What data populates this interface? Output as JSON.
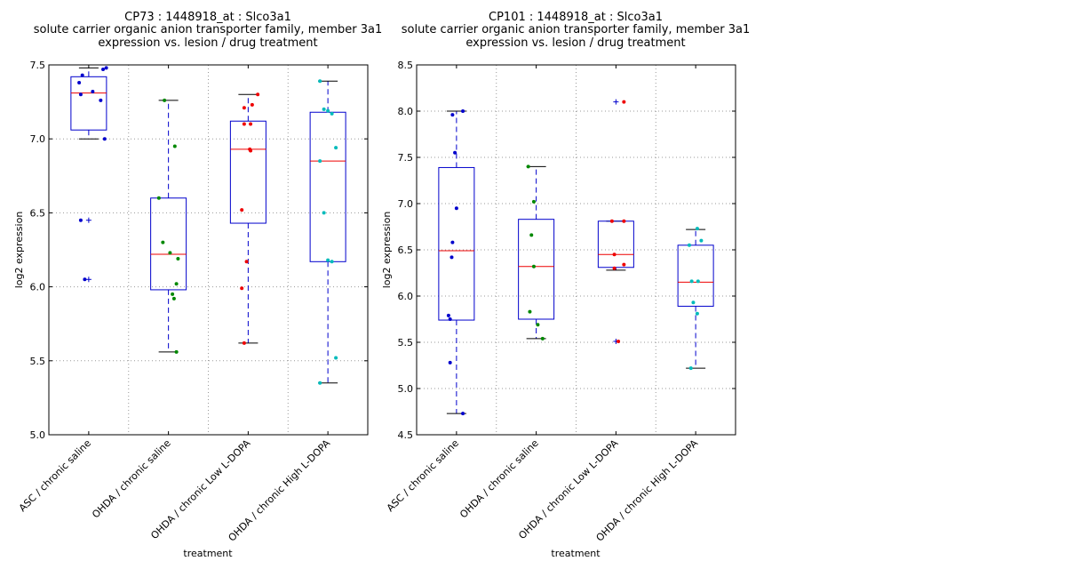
{
  "chart_data": [
    {
      "type": "box",
      "title_lines": [
        "CP73 : 1448918_at : Slco3a1",
        "solute carrier organic anion transporter family, member 3a1",
        "expression vs. lesion / drug treatment"
      ],
      "xlabel": "treatment",
      "ylabel": "log2 expression",
      "ylim": [
        5.0,
        7.5
      ],
      "yticks": [
        "5.0",
        "5.5",
        "6.0",
        "6.5",
        "7.0",
        "7.5"
      ],
      "ytick_values": [
        5.0,
        5.5,
        6.0,
        6.5,
        7.0,
        7.5
      ],
      "grid": true,
      "categories": [
        "ASC / chronic saline",
        "OHDA / chronic saline",
        "OHDA / chronic Low L-DOPA",
        "OHDA / chronic High L-DOPA"
      ],
      "boxes": [
        {
          "q1": 7.06,
          "median": 7.31,
          "q3": 7.42,
          "whisker_low": 7.0,
          "whisker_high": 7.48,
          "outliers": [
            6.45,
            6.05
          ]
        },
        {
          "q1": 5.98,
          "median": 6.22,
          "q3": 6.6,
          "whisker_low": 5.56,
          "whisker_high": 7.26,
          "outliers": []
        },
        {
          "q1": 6.43,
          "median": 6.93,
          "q3": 7.12,
          "whisker_low": 5.62,
          "whisker_high": 7.3,
          "outliers": []
        },
        {
          "q1": 6.17,
          "median": 6.85,
          "q3": 7.18,
          "whisker_low": 5.35,
          "whisker_high": 7.39,
          "outliers": []
        }
      ],
      "points": [
        {
          "color": "#0000cc",
          "values": [
            7.48,
            7.47,
            7.43,
            7.38,
            7.32,
            7.3,
            7.26,
            7.0,
            6.45,
            6.05
          ],
          "offsets": [
            0.22,
            0.18,
            -0.08,
            -0.12,
            0.05,
            -0.1,
            0.15,
            0.2,
            -0.1,
            -0.05
          ]
        },
        {
          "color": "#008800",
          "values": [
            7.26,
            6.95,
            6.6,
            6.3,
            6.23,
            6.19,
            6.02,
            5.95,
            5.92,
            5.56
          ],
          "offsets": [
            -0.05,
            0.08,
            -0.12,
            -0.07,
            0.02,
            0.12,
            0.1,
            0.05,
            0.07,
            0.1
          ]
        },
        {
          "color": "#ee0000",
          "values": [
            7.3,
            7.23,
            7.21,
            7.1,
            7.1,
            6.93,
            6.92,
            6.52,
            6.17,
            5.99,
            5.62
          ],
          "offsets": [
            0.12,
            0.05,
            -0.05,
            -0.05,
            0.03,
            0.02,
            0.03,
            -0.08,
            -0.02,
            -0.08,
            -0.05
          ]
        },
        {
          "color": "#00bbbb",
          "values": [
            7.39,
            7.2,
            7.19,
            7.17,
            6.94,
            6.85,
            6.5,
            6.18,
            6.17,
            5.52,
            5.35
          ]
        }
      ]
    },
    {
      "type": "box",
      "title_lines": [
        "CP101 : 1448918_at : Slco3a1",
        "solute carrier organic anion transporter family, member 3a1",
        "expression vs. lesion / drug treatment"
      ],
      "xlabel": "treatment",
      "ylabel": "log2 expression",
      "ylim": [
        4.5,
        8.5
      ],
      "yticks": [
        "4.5",
        "5.0",
        "5.5",
        "6.0",
        "6.5",
        "7.0",
        "7.5",
        "8.0",
        "8.5"
      ],
      "ytick_values": [
        4.5,
        5.0,
        5.5,
        6.0,
        6.5,
        7.0,
        7.5,
        8.0,
        8.5
      ],
      "grid": true,
      "categories": [
        "ASC / chronic saline",
        "OHDA / chronic saline",
        "OHDA / chronic Low L-DOPA",
        "OHDA / chronic High L-DOPA"
      ],
      "boxes": [
        {
          "q1": 5.74,
          "median": 6.49,
          "q3": 7.39,
          "whisker_low": 4.73,
          "whisker_high": 8.0,
          "outliers": []
        },
        {
          "q1": 5.75,
          "median": 6.32,
          "q3": 6.83,
          "whisker_low": 5.54,
          "whisker_high": 7.4,
          "outliers": []
        },
        {
          "q1": 6.31,
          "median": 6.45,
          "q3": 6.81,
          "whisker_low": 6.28,
          "whisker_high": 6.81,
          "outliers": [
            8.1,
            5.51
          ]
        },
        {
          "q1": 5.89,
          "median": 6.15,
          "q3": 6.55,
          "whisker_low": 5.22,
          "whisker_high": 6.72,
          "outliers": []
        }
      ],
      "points": [
        {
          "color": "#0000cc",
          "values": [
            8.0,
            7.96,
            7.55,
            6.95,
            6.58,
            6.42,
            5.79,
            5.75,
            5.28,
            4.73
          ],
          "offsets": [
            0.08,
            -0.05,
            -0.02,
            0.0,
            -0.05,
            -0.06,
            -0.1,
            -0.08,
            -0.08,
            0.08
          ]
        },
        {
          "color": "#008800",
          "values": [
            7.4,
            7.02,
            6.66,
            6.32,
            5.83,
            5.69,
            5.54
          ],
          "offsets": [
            -0.1,
            -0.03,
            -0.06,
            -0.03,
            -0.08,
            0.02,
            0.08
          ]
        },
        {
          "color": "#ee0000",
          "values": [
            8.1,
            6.81,
            6.81,
            6.45,
            6.34,
            6.3,
            5.51
          ],
          "offsets": [
            0.1,
            -0.05,
            0.1,
            -0.02,
            0.1,
            -0.02,
            0.03
          ]
        },
        {
          "color": "#00bbbb",
          "values": [
            6.73,
            6.6,
            6.55,
            6.16,
            6.16,
            5.93,
            5.81,
            5.22
          ],
          "offsets": [
            0.02,
            0.07,
            -0.08,
            -0.05,
            0.03,
            -0.03,
            0.02,
            -0.06
          ]
        }
      ]
    }
  ]
}
